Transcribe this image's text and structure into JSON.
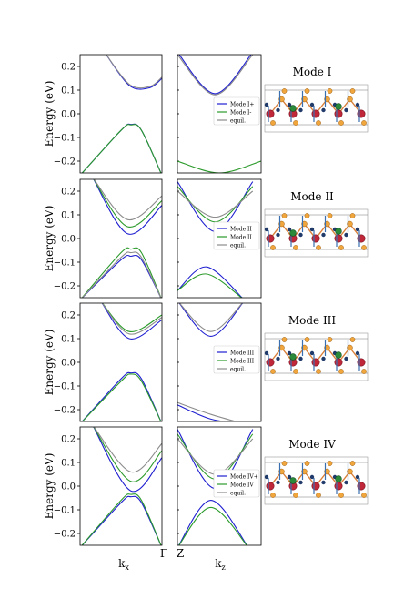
{
  "figure": {
    "ylabel": "Energy (eV)",
    "bottom_labels": {
      "left_k": "k",
      "left_k_sub": "x",
      "gamma": "Γ",
      "z": "Z",
      "right_k": "k",
      "right_k_sub": "z"
    }
  },
  "chart_data": [
    {
      "type": "line",
      "mode_title": "Mode I",
      "ylabel": "Energy (eV)",
      "ylim": [
        -0.25,
        0.25
      ],
      "yticks": [
        0.2,
        0.1,
        0.0,
        -0.1,
        -0.2
      ],
      "ytick_labels": [
        "0.2",
        "0.1",
        "0.0",
        "−0.1",
        "−0.2"
      ],
      "legend": [
        {
          "name": "Mode I+",
          "color": "#1f1fd0"
        },
        {
          "name": "Mode I-",
          "color": "#2a9a2a"
        },
        {
          "name": "equil.",
          "color": "#8c8c8c"
        }
      ],
      "panel_left": {
        "xlabel": "kx",
        "series": [
          {
            "color": "#1f1fd0",
            "x": [
              0,
              0.5,
              0.62,
              0.75,
              1.0
            ],
            "y": [
              -0.26,
              -0.07,
              -0.045,
              -0.07,
              -0.26
            ]
          },
          {
            "color": "#2a9a2a",
            "x": [
              0,
              0.5,
              0.62,
              0.75,
              1.0
            ],
            "y": [
              -0.26,
              -0.07,
              -0.047,
              -0.07,
              -0.26
            ]
          },
          {
            "color": "#1f1fd0",
            "x": [
              0.3,
              0.6,
              0.85,
              1.0
            ],
            "y": [
              0.26,
              0.12,
              0.11,
              0.15
            ]
          },
          {
            "color": "#8c8c8c",
            "x": [
              0.3,
              0.6,
              0.85,
              1.0
            ],
            "y": [
              0.26,
              0.125,
              0.115,
              0.155
            ]
          }
        ]
      },
      "panel_right": {
        "xlabel": "kz",
        "series": [
          {
            "color": "#1f1fd0",
            "x": [
              0,
              0.45,
              0.9
            ],
            "y": [
              0.26,
              0.085,
              0.26
            ]
          },
          {
            "color": "#8c8c8c",
            "x": [
              0,
              0.45,
              0.9
            ],
            "y": [
              0.25,
              0.08,
              0.25
            ]
          },
          {
            "color": "#2a9a2a",
            "x": [
              0,
              0.5,
              1.0
            ],
            "y": [
              -0.2,
              -0.25,
              -0.2
            ]
          }
        ]
      }
    },
    {
      "type": "line",
      "mode_title": "Mode II",
      "ylabel": "Energy (eV)",
      "ylim": [
        -0.25,
        0.25
      ],
      "yticks": [
        0.2,
        0.1,
        0.0,
        -0.1,
        -0.2
      ],
      "ytick_labels": [
        "0.2",
        "0.1",
        "0.0",
        "−0.1",
        "−0.2"
      ],
      "legend": [
        {
          "name": "Mode II",
          "color": "#1f1fd0"
        },
        {
          "name": "Mode II",
          "color": "#2a9a2a"
        },
        {
          "name": "equil.",
          "color": "#8c8c8c"
        }
      ],
      "panel_left": {
        "xlabel": "kx",
        "series": [
          {
            "color": "#1f1fd0",
            "x": [
              0,
              0.5,
              0.62,
              0.75,
              1.0
            ],
            "y": [
              -0.26,
              -0.09,
              -0.075,
              -0.09,
              -0.26
            ]
          },
          {
            "color": "#2a9a2a",
            "x": [
              0,
              0.5,
              0.62,
              0.75,
              1.0
            ],
            "y": [
              -0.26,
              -0.06,
              -0.045,
              -0.06,
              -0.26
            ]
          },
          {
            "color": "#8c8c8c",
            "x": [
              0,
              0.5,
              0.62,
              0.75,
              1.0
            ],
            "y": [
              -0.26,
              -0.08,
              -0.06,
              -0.08,
              -0.26
            ]
          },
          {
            "color": "#1f1fd0",
            "x": [
              0.15,
              0.58,
              1.0
            ],
            "y": [
              0.26,
              0.02,
              0.14
            ]
          },
          {
            "color": "#2a9a2a",
            "x": [
              0.15,
              0.58,
              1.0
            ],
            "y": [
              0.26,
              0.05,
              0.16
            ]
          },
          {
            "color": "#8c8c8c",
            "x": [
              0.15,
              0.58,
              1.0
            ],
            "y": [
              0.26,
              0.08,
              0.18
            ]
          }
        ]
      },
      "panel_right": {
        "xlabel": "kz",
        "series": [
          {
            "color": "#1f1fd0",
            "x": [
              0,
              0.45,
              0.9
            ],
            "y": [
              0.24,
              0.03,
              0.24
            ]
          },
          {
            "color": "#2a9a2a",
            "x": [
              0,
              0.45,
              0.9
            ],
            "y": [
              0.22,
              0.07,
              0.22
            ]
          },
          {
            "color": "#8c8c8c",
            "x": [
              0,
              0.45,
              0.9
            ],
            "y": [
              0.2,
              0.09,
              0.2
            ]
          },
          {
            "color": "#1f1fd0",
            "x": [
              0,
              0.35,
              0.8
            ],
            "y": [
              -0.22,
              -0.12,
              -0.26
            ]
          },
          {
            "color": "#2a9a2a",
            "x": [
              0,
              0.35,
              0.8
            ],
            "y": [
              -0.22,
              -0.15,
              -0.26
            ]
          }
        ]
      }
    },
    {
      "type": "line",
      "mode_title": "Mode III",
      "ylabel": "Energy (eV)",
      "ylim": [
        -0.25,
        0.25
      ],
      "yticks": [
        0.2,
        0.1,
        0.0,
        -0.1,
        -0.2
      ],
      "ytick_labels": [
        "0.2",
        "0.1",
        "0.0",
        "−0.1",
        "−0.2"
      ],
      "legend": [
        {
          "name": "Mode III",
          "color": "#1f1fd0"
        },
        {
          "name": "Mode III-",
          "color": "#2a9a2a"
        },
        {
          "name": "equil.",
          "color": "#8c8c8c"
        }
      ],
      "panel_left": {
        "xlabel": "kx",
        "series": [
          {
            "color": "#1f1fd0",
            "x": [
              0,
              0.5,
              0.62,
              0.75,
              1.0
            ],
            "y": [
              -0.26,
              -0.07,
              -0.045,
              -0.07,
              -0.26
            ]
          },
          {
            "color": "#2a9a2a",
            "x": [
              0,
              0.5,
              0.62,
              0.75,
              1.0
            ],
            "y": [
              -0.26,
              -0.08,
              -0.05,
              -0.08,
              -0.26
            ]
          },
          {
            "color": "#1f1fd0",
            "x": [
              0.25,
              0.6,
              1.0
            ],
            "y": [
              0.26,
              0.1,
              0.18
            ]
          },
          {
            "color": "#2a9a2a",
            "x": [
              0.25,
              0.6,
              1.0
            ],
            "y": [
              0.26,
              0.13,
              0.2
            ]
          },
          {
            "color": "#8c8c8c",
            "x": [
              0.25,
              0.6,
              1.0
            ],
            "y": [
              0.26,
              0.12,
              0.19
            ]
          }
        ]
      },
      "panel_right": {
        "xlabel": "kz",
        "series": [
          {
            "color": "#1f1fd0",
            "x": [
              0,
              0.4,
              0.8
            ],
            "y": [
              0.26,
              0.11,
              0.26
            ]
          },
          {
            "color": "#8c8c8c",
            "x": [
              0,
              0.4,
              0.8
            ],
            "y": [
              0.26,
              0.13,
              0.26
            ]
          },
          {
            "color": "#1f1fd0",
            "x": [
              0,
              0.4,
              0.8
            ],
            "y": [
              -0.18,
              -0.24,
              -0.26
            ]
          },
          {
            "color": "#8c8c8c",
            "x": [
              0,
              0.4,
              0.8
            ],
            "y": [
              -0.17,
              -0.22,
              -0.26
            ]
          }
        ]
      }
    },
    {
      "type": "line",
      "mode_title": "Mode IV",
      "ylabel": "Energy (eV)",
      "ylim": [
        -0.25,
        0.25
      ],
      "yticks": [
        0.2,
        0.1,
        0.0,
        -0.1,
        -0.2
      ],
      "ytick_labels": [
        "0.2",
        "0.1",
        "0.0",
        "−0.1",
        "−0.2"
      ],
      "legend": [
        {
          "name": "Mode IV+",
          "color": "#1f1fd0"
        },
        {
          "name": "Mode IV",
          "color": "#2a9a2a"
        },
        {
          "name": "equil.",
          "color": "#8c8c8c"
        }
      ],
      "panel_left": {
        "xlabel": "kx",
        "series": [
          {
            "color": "#1f1fd0",
            "x": [
              0,
              0.5,
              0.62,
              0.75,
              1.0
            ],
            "y": [
              -0.26,
              -0.07,
              -0.045,
              -0.07,
              -0.26
            ]
          },
          {
            "color": "#2a9a2a",
            "x": [
              0,
              0.5,
              0.62,
              0.75,
              1.0
            ],
            "y": [
              -0.26,
              -0.06,
              -0.035,
              -0.06,
              -0.26
            ]
          },
          {
            "color": "#1f1fd0",
            "x": [
              0.15,
              0.62,
              1.0
            ],
            "y": [
              0.26,
              -0.02,
              0.12
            ]
          },
          {
            "color": "#2a9a2a",
            "x": [
              0.15,
              0.62,
              1.0
            ],
            "y": [
              0.26,
              0.02,
              0.15
            ]
          },
          {
            "color": "#8c8c8c",
            "x": [
              0.15,
              0.62,
              1.0
            ],
            "y": [
              0.26,
              0.06,
              0.18
            ]
          }
        ]
      },
      "panel_right": {
        "xlabel": "kz",
        "series": [
          {
            "color": "#1f1fd0",
            "x": [
              0,
              0.45,
              0.9
            ],
            "y": [
              0.24,
              -0.01,
              0.24
            ]
          },
          {
            "color": "#2a9a2a",
            "x": [
              0,
              0.45,
              0.9
            ],
            "y": [
              0.22,
              0.03,
              0.22
            ]
          },
          {
            "color": "#8c8c8c",
            "x": [
              0,
              0.45,
              0.9
            ],
            "y": [
              0.2,
              0.05,
              0.2
            ]
          },
          {
            "color": "#1f1fd0",
            "x": [
              0,
              0.4,
              0.85
            ],
            "y": [
              -0.26,
              -0.06,
              -0.26
            ]
          },
          {
            "color": "#2a9a2a",
            "x": [
              0,
              0.4,
              0.85
            ],
            "y": [
              -0.26,
              -0.09,
              -0.26
            ]
          }
        ]
      }
    }
  ]
}
